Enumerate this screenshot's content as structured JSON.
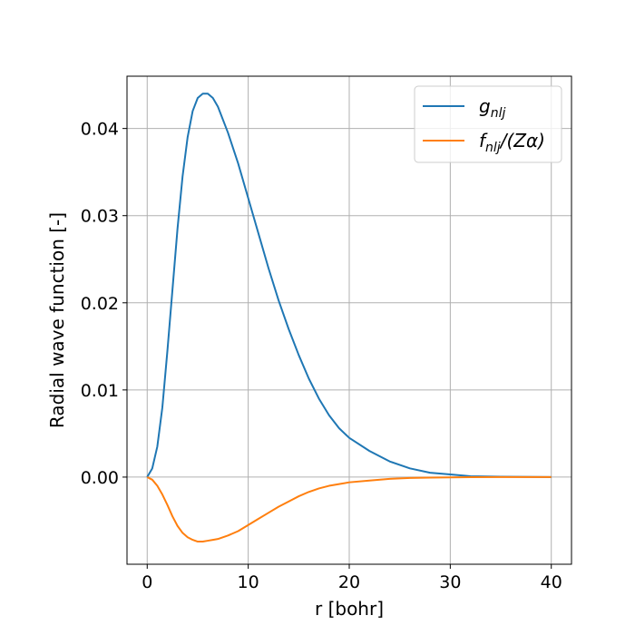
{
  "chart_data": {
    "type": "line",
    "title": "",
    "xlabel": "r [bohr]",
    "ylabel": "Radial wave function [-]",
    "xlim": [
      -2,
      42
    ],
    "ylim": [
      -0.01,
      0.046
    ],
    "xticks": [
      0,
      10,
      20,
      30,
      40
    ],
    "xtick_labels": [
      "0",
      "10",
      "20",
      "30",
      "40"
    ],
    "yticks": [
      0.0,
      0.01,
      0.02,
      0.03,
      0.04
    ],
    "ytick_labels": [
      "0.00",
      "0.01",
      "0.02",
      "0.03",
      "0.04"
    ],
    "grid": true,
    "legend_position": "top-right",
    "series": [
      {
        "name": "g_nlj",
        "color": "#1f77b4",
        "x": [
          0,
          0.5,
          1,
          1.5,
          2,
          2.5,
          3,
          3.5,
          4,
          4.5,
          5,
          5.5,
          6,
          6.5,
          7,
          8,
          9,
          10,
          11,
          12,
          13,
          14,
          15,
          16,
          17,
          18,
          19,
          20,
          22,
          24,
          26,
          28,
          30,
          32,
          35,
          40
        ],
        "y": [
          0.0,
          0.001,
          0.0035,
          0.008,
          0.0145,
          0.0215,
          0.0285,
          0.0345,
          0.039,
          0.042,
          0.0435,
          0.044,
          0.044,
          0.0435,
          0.0425,
          0.0395,
          0.036,
          0.032,
          0.028,
          0.024,
          0.0203,
          0.017,
          0.014,
          0.0113,
          0.009,
          0.0071,
          0.0056,
          0.0045,
          0.003,
          0.0018,
          0.001,
          0.0005,
          0.0003,
          0.0001,
          5e-05,
          0.0
        ]
      },
      {
        "name": "f_nlj/(Zα)",
        "color": "#ff7f0e",
        "x": [
          0,
          0.5,
          1,
          1.5,
          2,
          2.5,
          3,
          3.5,
          4,
          4.5,
          5,
          5.5,
          6,
          6.5,
          7,
          8,
          9,
          10,
          11,
          12,
          13,
          14,
          15,
          16,
          17,
          18,
          19,
          20,
          22,
          24,
          26,
          28,
          30,
          32,
          35,
          40
        ],
        "y": [
          0.0,
          -0.0003,
          -0.001,
          -0.002,
          -0.0032,
          -0.0045,
          -0.0056,
          -0.0064,
          -0.0069,
          -0.0072,
          -0.0074,
          -0.0074,
          -0.0073,
          -0.0072,
          -0.0071,
          -0.0067,
          -0.0062,
          -0.0055,
          -0.0048,
          -0.0041,
          -0.0034,
          -0.0028,
          -0.0022,
          -0.0017,
          -0.0013,
          -0.001,
          -0.0008,
          -0.0006,
          -0.0004,
          -0.0002,
          -0.0001,
          -6e-05,
          -3e-05,
          -1e-05,
          0.0,
          0.0
        ]
      }
    ]
  },
  "legend": {
    "g_main": "g",
    "g_sub": "nlj",
    "f_main": "f",
    "f_sub": "nlj",
    "f_suffix": "/(Zα)"
  }
}
